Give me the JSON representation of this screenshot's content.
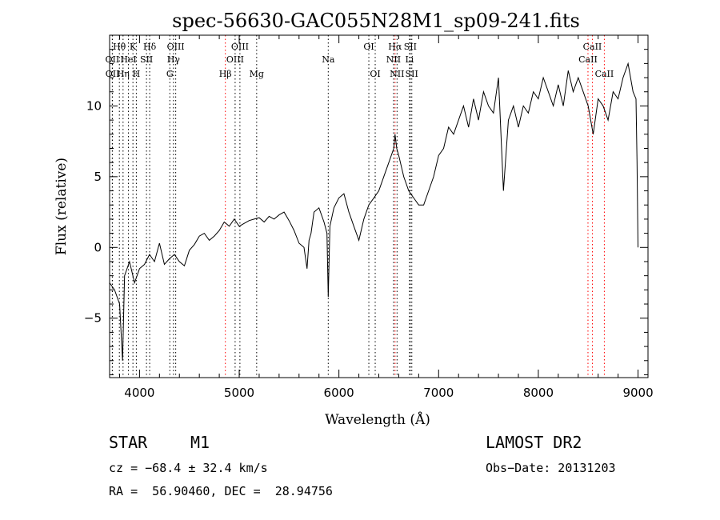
{
  "chart_data": {
    "type": "line",
    "title": "spec-56630-GAC055N28M1_sp09-241.fits",
    "xlabel": "Wavelength (Å)",
    "ylabel": "Flux (relative)",
    "xlim": [
      3700,
      9100
    ],
    "ylim": [
      -9.2,
      15.0
    ],
    "x_ticks": [
      4000,
      5000,
      6000,
      7000,
      8000,
      9000
    ],
    "y_ticks": [
      -5,
      0,
      5,
      10
    ],
    "x_tick_labels": [
      "4000",
      "5000",
      "6000",
      "7000",
      "8000",
      "9000"
    ],
    "y_tick_labels": [
      "−5",
      "0",
      "5",
      "10"
    ],
    "series": [
      {
        "x": [
          3700,
          3750,
          3800,
          3830,
          3850,
          3900,
          3950,
          4000,
          4050,
          4100,
          4150,
          4200,
          4250,
          4300,
          4350,
          4400,
          4450,
          4500,
          4550,
          4600,
          4650,
          4700,
          4750,
          4800,
          4850,
          4900,
          4950,
          5000,
          5050,
          5100,
          5150,
          5200,
          5250,
          5300,
          5350,
          5400,
          5450,
          5500,
          5550,
          5600,
          5650,
          5680,
          5700,
          5720,
          5750,
          5800,
          5850,
          5880,
          5893,
          5910,
          5950,
          6000,
          6050,
          6100,
          6150,
          6200,
          6250,
          6300,
          6350,
          6400,
          6450,
          6500,
          6550,
          6563,
          6580,
          6600,
          6650,
          6700,
          6750,
          6800,
          6850,
          6900,
          6950,
          7000,
          7050,
          7100,
          7150,
          7200,
          7250,
          7300,
          7350,
          7400,
          7450,
          7500,
          7550,
          7600,
          7650,
          7700,
          7750,
          7800,
          7850,
          7900,
          7950,
          8000,
          8050,
          8100,
          8150,
          8200,
          8250,
          8300,
          8350,
          8400,
          8450,
          8500,
          8550,
          8600,
          8650,
          8700,
          8750,
          8800,
          8850,
          8900,
          8950,
          8980,
          8990,
          9000
        ],
        "y": [
          -2.5,
          -3.0,
          -4.0,
          -8.0,
          -2.0,
          -1.0,
          -2.5,
          -1.5,
          -1.2,
          -0.5,
          -1.0,
          0.3,
          -1.2,
          -0.8,
          -0.5,
          -1.0,
          -1.3,
          -0.2,
          0.2,
          0.8,
          1.0,
          0.5,
          0.8,
          1.2,
          1.8,
          1.5,
          2.0,
          1.5,
          1.7,
          1.9,
          2.0,
          2.1,
          1.8,
          2.2,
          2.0,
          2.3,
          2.5,
          1.9,
          1.2,
          0.3,
          0.0,
          -1.5,
          0.5,
          1.0,
          2.5,
          2.8,
          1.8,
          1.0,
          -3.5,
          1.5,
          2.8,
          3.5,
          3.8,
          2.5,
          1.5,
          0.5,
          2.0,
          3.0,
          3.5,
          4.0,
          5.0,
          6.0,
          7.0,
          8.0,
          7.0,
          6.5,
          5.0,
          4.0,
          3.5,
          3.0,
          3.0,
          4.0,
          5.0,
          6.5,
          7.0,
          8.5,
          8.0,
          9.0,
          10.0,
          8.5,
          10.5,
          9.0,
          11.0,
          10.0,
          9.5,
          12.0,
          4.0,
          9.0,
          10.0,
          8.5,
          10.0,
          9.5,
          11.0,
          10.5,
          12.0,
          11.0,
          10.0,
          11.5,
          10.0,
          12.5,
          11.0,
          12.0,
          11.0,
          10.0,
          8.0,
          10.5,
          10.0,
          9.0,
          11.0,
          10.5,
          12.0,
          13.0,
          11.0,
          10.5,
          6.0,
          0.0
        ]
      }
    ],
    "lines": [
      {
        "label": "Hθ",
        "x": 3798,
        "row": 1,
        "color": "#000000"
      },
      {
        "label": "OII",
        "x": 3727,
        "row": 2,
        "color": "#000000"
      },
      {
        "label": "OII",
        "x": 3729,
        "row": 3,
        "color": "#000000"
      },
      {
        "label": "Hη",
        "x": 3835,
        "row": 3,
        "color": "#000000"
      },
      {
        "label": "HeI",
        "x": 3889,
        "row": 2,
        "color": "#000000"
      },
      {
        "label": "K",
        "x": 3934,
        "row": 1,
        "color": "#000000"
      },
      {
        "label": "H",
        "x": 3968,
        "row": 3,
        "color": "#000000"
      },
      {
        "label": "SII",
        "x": 4070,
        "row": 2,
        "color": "#000000"
      },
      {
        "label": "Hδ",
        "x": 4102,
        "row": 1,
        "color": "#000000"
      },
      {
        "label": "G",
        "x": 4304,
        "row": 3,
        "color": "#000000"
      },
      {
        "label": "Hγ",
        "x": 4341,
        "row": 2,
        "color": "#000000"
      },
      {
        "label": "OIII",
        "x": 4363,
        "row": 1,
        "color": "#000000"
      },
      {
        "label": "Hβ",
        "x": 4861,
        "row": 3,
        "color": "#ff0000"
      },
      {
        "label": "OIII",
        "x": 4959,
        "row": 2,
        "color": "#000000"
      },
      {
        "label": "OIII",
        "x": 5007,
        "row": 1,
        "color": "#000000"
      },
      {
        "label": "Mg",
        "x": 5175,
        "row": 3,
        "color": "#000000"
      },
      {
        "label": "Na",
        "x": 5893,
        "row": 2,
        "color": "#000000"
      },
      {
        "label": "OI",
        "x": 6300,
        "row": 1,
        "color": "#000000"
      },
      {
        "label": "OI",
        "x": 6364,
        "row": 3,
        "color": "#000000"
      },
      {
        "label": "NII",
        "x": 6548,
        "row": 2,
        "color": "#000000"
      },
      {
        "label": "Hα",
        "x": 6563,
        "row": 1,
        "color": "#ff0000"
      },
      {
        "label": "NII",
        "x": 6583,
        "row": 3,
        "color": "#000000"
      },
      {
        "label": "Li",
        "x": 6708,
        "row": 2,
        "color": "#000000"
      },
      {
        "label": "SII",
        "x": 6716,
        "row": 1,
        "color": "#000000"
      },
      {
        "label": "SII",
        "x": 6731,
        "row": 3,
        "color": "#000000"
      },
      {
        "label": "CaII",
        "x": 8498,
        "row": 2,
        "color": "#ff0000"
      },
      {
        "label": "CaII",
        "x": 8542,
        "row": 1,
        "color": "#ff0000"
      },
      {
        "label": "CaII",
        "x": 8662,
        "row": 3,
        "color": "#ff0000"
      }
    ]
  },
  "info": {
    "object_type": "STAR",
    "subclass": "M1",
    "survey": "LAMOST DR2",
    "cz": "cz = −68.4 ± 32.4 km/s",
    "obs_date": "Obs−Date: 20131203",
    "coords": "RA =  56.90460, DEC =  28.94756"
  },
  "colors": {
    "line_marker_default": "#000000",
    "line_marker_highlight": "#ff0000"
  }
}
